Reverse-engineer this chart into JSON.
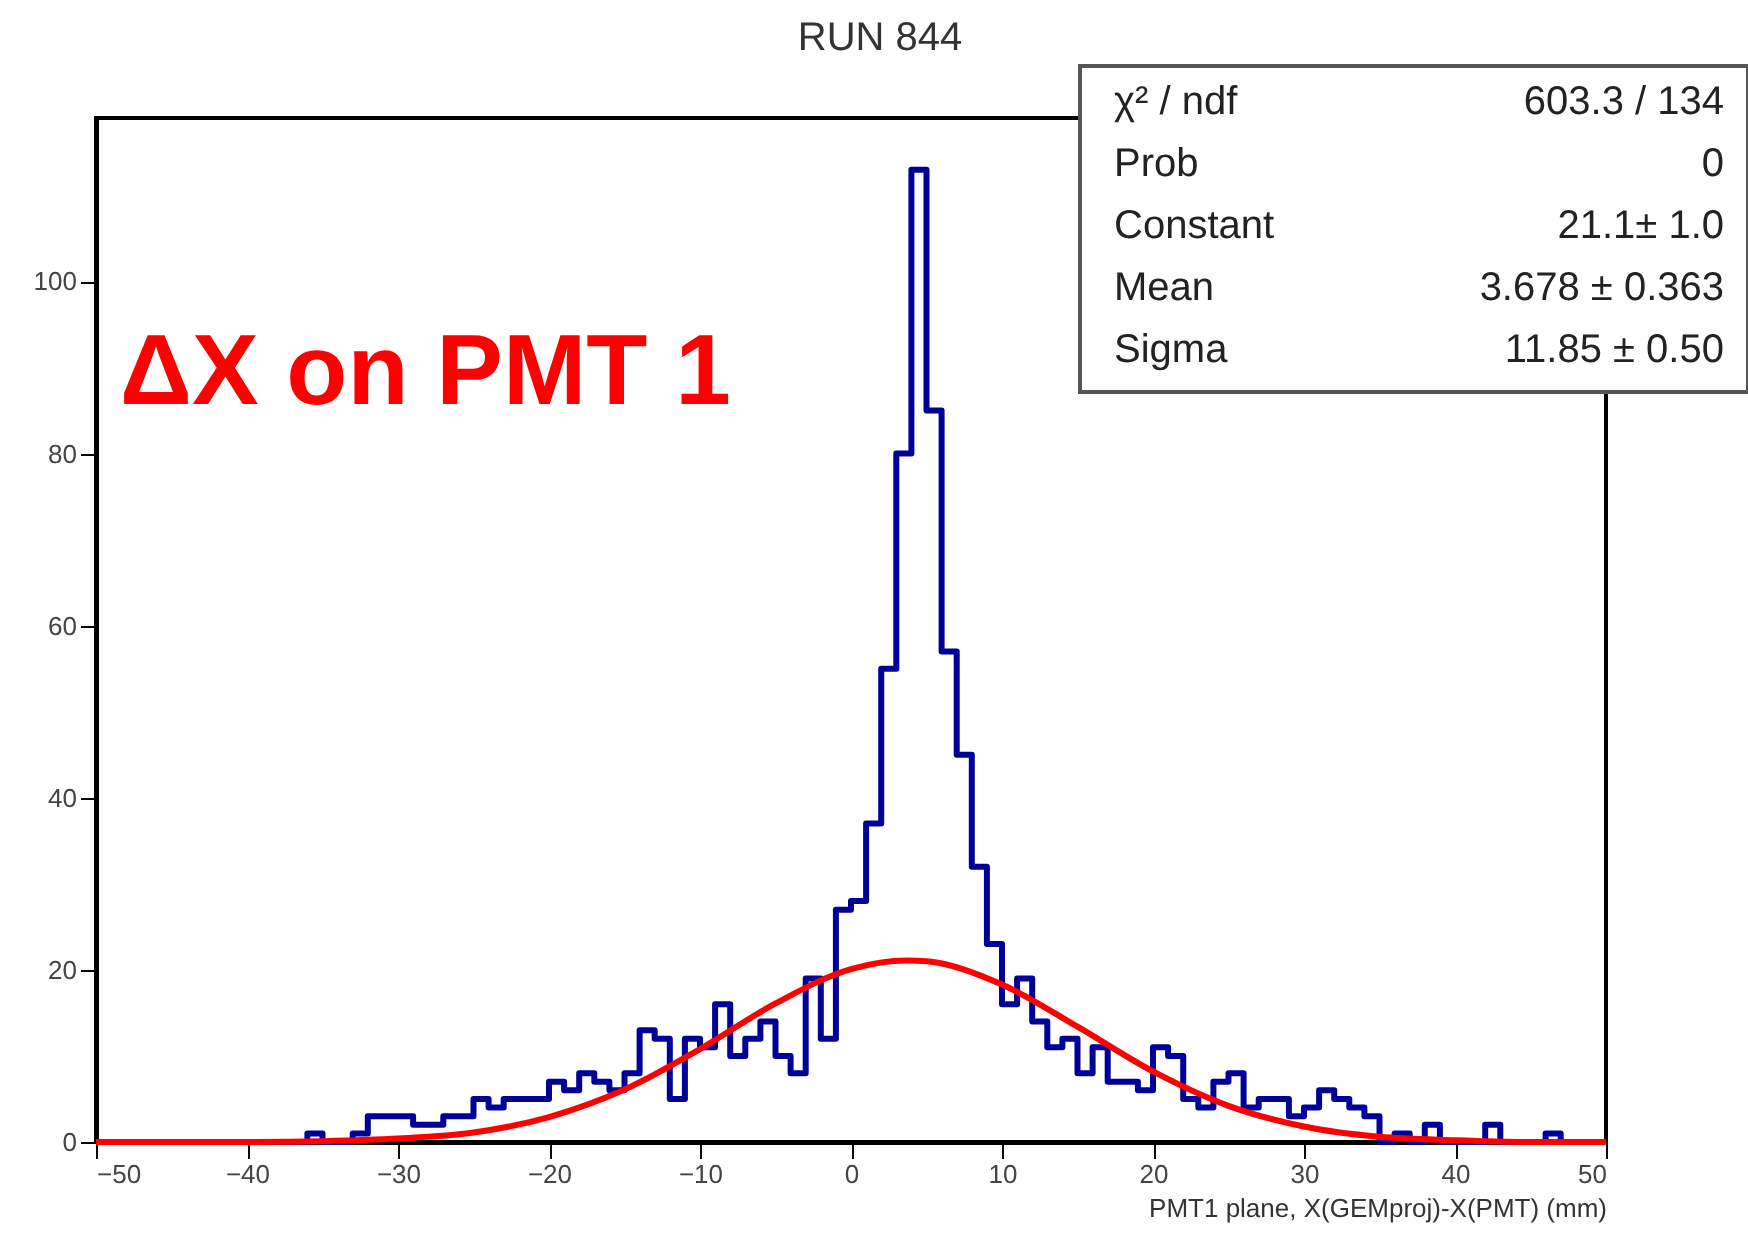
{
  "chart_data": {
    "type": "histogram",
    "title": "RUN 844",
    "xlabel": "PMT1 plane, X(GEMproj)-X(PMT) (mm)",
    "bins": [
      -50,
      -49,
      -48,
      -47,
      -46,
      -45,
      -44,
      -43,
      -42,
      -41,
      -40,
      -39,
      -38,
      -37,
      -36,
      -35,
      -34,
      -33,
      -32,
      -31,
      -30,
      -29,
      -28,
      -27,
      -26,
      -25,
      -24,
      -23,
      -22,
      -21,
      -20,
      -19,
      -18,
      -17,
      -16,
      -15,
      -14,
      -13,
      -12,
      -11,
      -10,
      -9,
      -8,
      -7,
      -6,
      -5,
      -4,
      -3,
      -2,
      -1,
      0,
      1,
      2,
      3,
      4,
      5,
      6,
      7,
      8,
      9,
      10,
      11,
      12,
      13,
      14,
      15,
      16,
      17,
      18,
      19,
      20,
      21,
      22,
      23,
      24,
      25,
      26,
      27,
      28,
      29,
      30,
      31,
      32,
      33,
      34,
      35,
      36,
      37,
      38,
      39,
      40,
      41,
      42,
      43,
      44,
      45,
      46,
      47,
      48,
      49,
      50
    ],
    "values": [
      0,
      0,
      0,
      0,
      0,
      0,
      0,
      0,
      0,
      0,
      0,
      0,
      0,
      0,
      1,
      0,
      0,
      1,
      3,
      3,
      3,
      2,
      2,
      3,
      3,
      5,
      4,
      5,
      5,
      5,
      7,
      6,
      8,
      7,
      6,
      8,
      13,
      12,
      5,
      12,
      11,
      16,
      10,
      12,
      14,
      10,
      8,
      19,
      12,
      27,
      28,
      37,
      55,
      80,
      113,
      85,
      57,
      45,
      32,
      23,
      16,
      19,
      14,
      11,
      12,
      8,
      11,
      7,
      7,
      6,
      11,
      10,
      5,
      4,
      7,
      8,
      4,
      5,
      5,
      3,
      4,
      6,
      5,
      4,
      3,
      0,
      1,
      0,
      2,
      0,
      0,
      0,
      2,
      0,
      0,
      0,
      1,
      0,
      0,
      0
    ],
    "color": "#000099",
    "series": [
      {
        "type": "line",
        "color": "#ff0000",
        "x": [
          -50,
          -45,
          -40,
          -35,
          -30,
          -25,
          -20,
          -15,
          -10,
          -5,
          0,
          3.678,
          5,
          10,
          15,
          20,
          25,
          30,
          35,
          40,
          45,
          50
        ],
        "values": [
          0,
          0,
          0,
          0.1,
          0.4,
          1.1,
          2.9,
          6.1,
          10.8,
          16.1,
          20.1,
          21.1,
          21.0,
          18.3,
          13.4,
          8.2,
          4.2,
          1.8,
          0.6,
          0.2,
          0,
          0
        ]
      }
    ],
    "xlim": [
      -50,
      50
    ],
    "xticks": [
      -50,
      -40,
      -30,
      -20,
      -10,
      0,
      10,
      20,
      30,
      40,
      50
    ],
    "ylim": [
      0,
      119
    ],
    "yticks": [
      0,
      20,
      40,
      60,
      80,
      100
    ],
    "annotations": [
      "ΔX on PMT 1",
      "χ² / ndf",
      "603.3 / 134",
      "Prob",
      "0",
      "Constant",
      "21.1± 1.0",
      "Mean",
      "3.678 ± 0.363",
      "Sigma",
      "11.85 ± 0.50"
    ],
    "grid": false
  }
}
